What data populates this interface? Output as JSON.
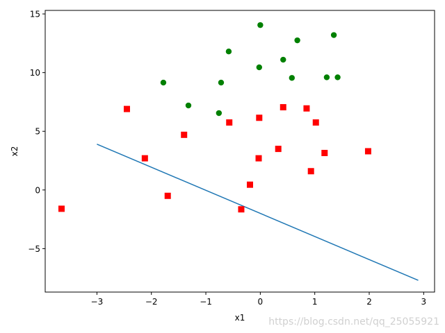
{
  "chart_data": {
    "type": "scatter",
    "title": "",
    "xlabel": "x1",
    "ylabel": "x2",
    "xlim": [
      -3.95,
      3.2
    ],
    "ylim": [
      -8.7,
      15.3
    ],
    "xticks": [
      -3,
      -2,
      -1,
      0,
      1,
      2,
      3
    ],
    "xtick_labels": [
      "−3",
      "−2",
      "−1",
      "0",
      "1",
      "2",
      "3"
    ],
    "yticks": [
      -5,
      0,
      5,
      10,
      15
    ],
    "ytick_labels": [
      "−5",
      "0",
      "5",
      "10",
      "15"
    ],
    "grid": false,
    "series": [
      {
        "type": "scatter",
        "marker": "circle",
        "color": "#008000",
        "points": [
          [
            0.0,
            14.05
          ],
          [
            1.35,
            13.2
          ],
          [
            0.68,
            12.75
          ],
          [
            -0.58,
            11.8
          ],
          [
            0.42,
            11.1
          ],
          [
            -0.02,
            10.45
          ],
          [
            0.58,
            9.55
          ],
          [
            1.22,
            9.6
          ],
          [
            1.42,
            9.6
          ],
          [
            -1.78,
            9.15
          ],
          [
            -0.72,
            9.15
          ],
          [
            -1.32,
            7.2
          ],
          [
            -0.76,
            6.55
          ]
        ]
      },
      {
        "type": "scatter",
        "marker": "square",
        "color": "#ff0000",
        "points": [
          [
            -2.45,
            6.9
          ],
          [
            -2.12,
            2.7
          ],
          [
            -1.4,
            4.7
          ],
          [
            -1.7,
            -0.5
          ],
          [
            -3.65,
            -1.6
          ],
          [
            -0.57,
            5.75
          ],
          [
            -0.02,
            6.15
          ],
          [
            0.42,
            7.05
          ],
          [
            0.85,
            6.95
          ],
          [
            1.02,
            5.75
          ],
          [
            0.33,
            3.5
          ],
          [
            -0.03,
            2.7
          ],
          [
            -0.19,
            0.45
          ],
          [
            -0.35,
            -1.65
          ],
          [
            0.93,
            1.6
          ],
          [
            1.18,
            3.15
          ],
          [
            1.98,
            3.3
          ]
        ]
      },
      {
        "type": "line",
        "color": "#1f77b4",
        "points": [
          [
            -3.0,
            3.9
          ],
          [
            2.9,
            -7.7
          ]
        ]
      }
    ]
  },
  "watermark": "https://blog.csdn.net/qq_25055921"
}
